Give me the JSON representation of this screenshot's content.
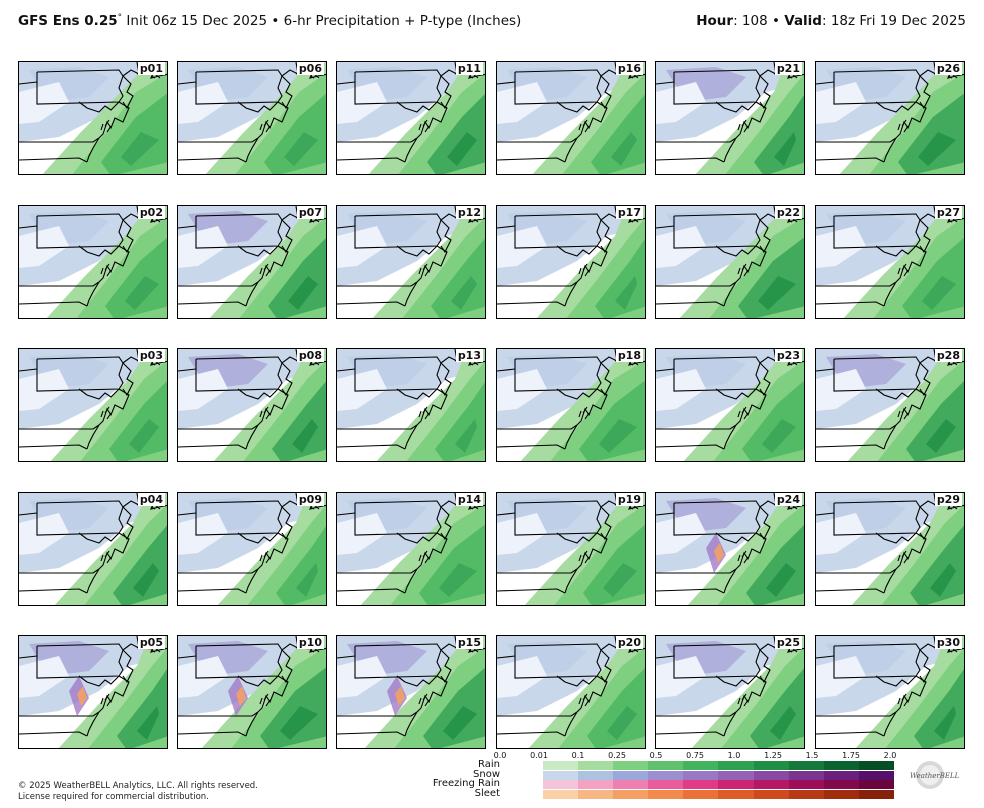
{
  "header": {
    "model": "GFS Ens 0.25",
    "degree": "°",
    "init": " Init 06z 15 Dec 2025 • 6-hr Precipitation + P-type (Inches)",
    "hour_label": "Hour",
    "hour_value": ": 108 • ",
    "valid_label": "Valid",
    "valid_value": ": 18z Fri 19 Dec 2025"
  },
  "panels": [
    [
      "p01",
      "p06",
      "p11",
      "p16",
      "p21",
      "p26"
    ],
    [
      "p02",
      "p07",
      "p12",
      "p17",
      "p22",
      "p27"
    ],
    [
      "p03",
      "p08",
      "p13",
      "p18",
      "p23",
      "p28"
    ],
    [
      "p04",
      "p09",
      "p14",
      "p19",
      "p24",
      "p29"
    ],
    [
      "p05",
      "p10",
      "p15",
      "p20",
      "p25",
      "p30"
    ]
  ],
  "legend": {
    "ticks": [
      "0.0",
      "0.01",
      "0.1",
      "0.25",
      "0.5",
      "0.75",
      "1.0",
      "1.25",
      "1.5",
      "1.75",
      "2.0"
    ],
    "rows": [
      {
        "label": "Rain",
        "colors": [
          "#c8eac4",
          "#a6dc9f",
          "#7fcf80",
          "#5fc16b",
          "#44b35d",
          "#2fa251",
          "#1f8f45",
          "#14793a",
          "#0b6430",
          "#064f26"
        ]
      },
      {
        "label": "Snow",
        "colors": [
          "#c9d7ea",
          "#acc2e0",
          "#9aa9da",
          "#9b8fd0",
          "#9978c4",
          "#9462b6",
          "#8a4aa3",
          "#7b3490",
          "#6a1f7d",
          "#56106a"
        ]
      },
      {
        "label": "Freezing Rain",
        "colors": [
          "#f6c4d8",
          "#f3a2c4",
          "#ef7fb0",
          "#e95b9b",
          "#df3b86",
          "#cc2574",
          "#b51865",
          "#9c0f58",
          "#82094b",
          "#6a053e"
        ]
      },
      {
        "label": "Sleet",
        "colors": [
          "#f9d0a8",
          "#f7b785",
          "#f4a064",
          "#f18a4a",
          "#ea7236",
          "#de5c27",
          "#ce4a1c",
          "#b83a14",
          "#a02d0e",
          "#87220a"
        ]
      }
    ]
  },
  "copyright": {
    "line1": "© 2025 WeatherBELL Analytics, LLC. All rights reserved.",
    "line2": "License required for commercial distribution."
  },
  "logo": {
    "text": "WeatherBELL"
  }
}
